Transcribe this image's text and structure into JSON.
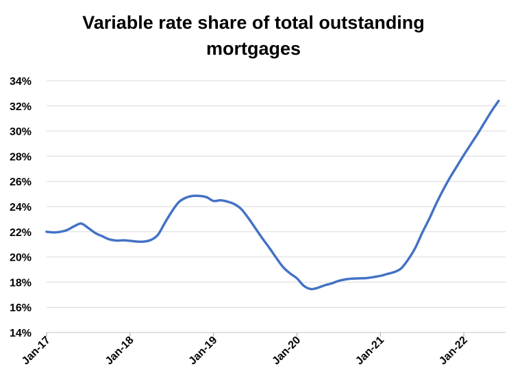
{
  "chart_data": {
    "type": "line",
    "title": "Variable rate share of total outstanding\nmortgages",
    "xlabel": "",
    "ylabel": "",
    "ylim": [
      14,
      34
    ],
    "yticks": [
      14,
      16,
      18,
      20,
      22,
      24,
      26,
      28,
      30,
      32,
      34
    ],
    "ytick_labels": [
      "14%",
      "16%",
      "18%",
      "20%",
      "22%",
      "24%",
      "26%",
      "28%",
      "30%",
      "32%",
      "34%"
    ],
    "xtick_labels": [
      "Jan-17",
      "Jan-18",
      "Jan-19",
      "Jan-20",
      "Jan-21",
      "Jan-22"
    ],
    "xtick_positions": [
      "2017-01",
      "2018-01",
      "2019-01",
      "2020-01",
      "2021-01",
      "2022-01"
    ],
    "grid": "horizontal",
    "legend": "none",
    "series": [
      {
        "color": "#4472c4",
        "x": [
          "2017-01",
          "2017-02",
          "2017-03",
          "2017-04",
          "2017-05",
          "2017-06",
          "2017-07",
          "2017-08",
          "2017-09",
          "2017-10",
          "2017-11",
          "2017-12",
          "2018-01",
          "2018-02",
          "2018-03",
          "2018-04",
          "2018-05",
          "2018-06",
          "2018-07",
          "2018-08",
          "2018-09",
          "2018-10",
          "2018-11",
          "2018-12",
          "2019-01",
          "2019-02",
          "2019-03",
          "2019-04",
          "2019-05",
          "2019-06",
          "2019-07",
          "2019-08",
          "2019-09",
          "2019-10",
          "2019-11",
          "2019-12",
          "2020-01",
          "2020-02",
          "2020-03",
          "2020-04",
          "2020-05",
          "2020-06",
          "2020-07",
          "2020-08",
          "2020-09",
          "2020-10",
          "2020-11",
          "2020-12",
          "2021-01",
          "2021-02",
          "2021-03",
          "2021-04",
          "2021-05",
          "2021-06",
          "2021-07",
          "2021-08",
          "2021-09",
          "2021-10",
          "2021-11",
          "2021-12",
          "2022-01",
          "2022-02",
          "2022-03",
          "2022-04",
          "2022-05",
          "2022-06"
        ],
        "values": [
          22.0,
          21.95,
          22.0,
          22.15,
          22.45,
          22.65,
          22.3,
          21.9,
          21.65,
          21.4,
          21.3,
          21.32,
          21.28,
          21.22,
          21.22,
          21.35,
          21.75,
          22.7,
          23.6,
          24.35,
          24.7,
          24.85,
          24.85,
          24.75,
          24.45,
          24.5,
          24.4,
          24.2,
          23.8,
          23.1,
          22.3,
          21.5,
          20.75,
          19.95,
          19.2,
          18.7,
          18.3,
          17.7,
          17.45,
          17.55,
          17.75,
          17.9,
          18.1,
          18.22,
          18.28,
          18.3,
          18.32,
          18.4,
          18.5,
          18.65,
          18.8,
          19.1,
          19.8,
          20.7,
          21.9,
          23.0,
          24.2,
          25.3,
          26.3,
          27.2,
          28.1,
          28.95,
          29.8,
          30.7,
          31.6,
          32.4
        ]
      }
    ]
  }
}
